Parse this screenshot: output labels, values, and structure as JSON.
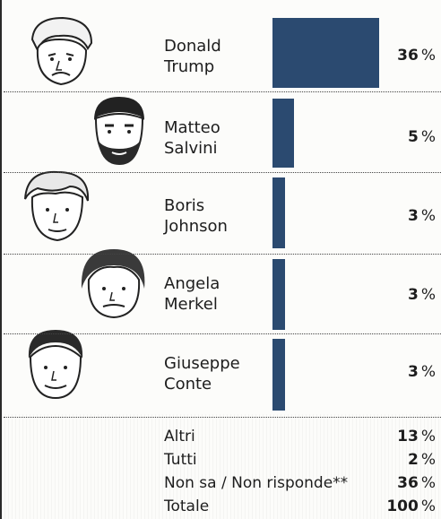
{
  "chart_data": {
    "type": "bar",
    "orientation": "horizontal",
    "categories": [
      "Donald\nTrump",
      "Matteo\nSalvini",
      "Boris\nJohnson",
      "Angela\nMerkel",
      "Giuseppe\nConte"
    ],
    "values": [
      36,
      5,
      3,
      3,
      3
    ],
    "value_labels": [
      "36",
      "5",
      "3",
      "3",
      "3"
    ],
    "unit": "%",
    "bar_color": "#2b4a70",
    "others": [
      {
        "label": "Altri",
        "value": "13",
        "unit": "%"
      },
      {
        "label": "Tutti",
        "value": "2",
        "unit": "%"
      },
      {
        "label": "Non sa / Non risponde**",
        "value": "36",
        "unit": "%"
      },
      {
        "label": "Totale",
        "value": "100",
        "unit": "%"
      }
    ],
    "title": "",
    "xlabel": "",
    "ylabel": ""
  }
}
